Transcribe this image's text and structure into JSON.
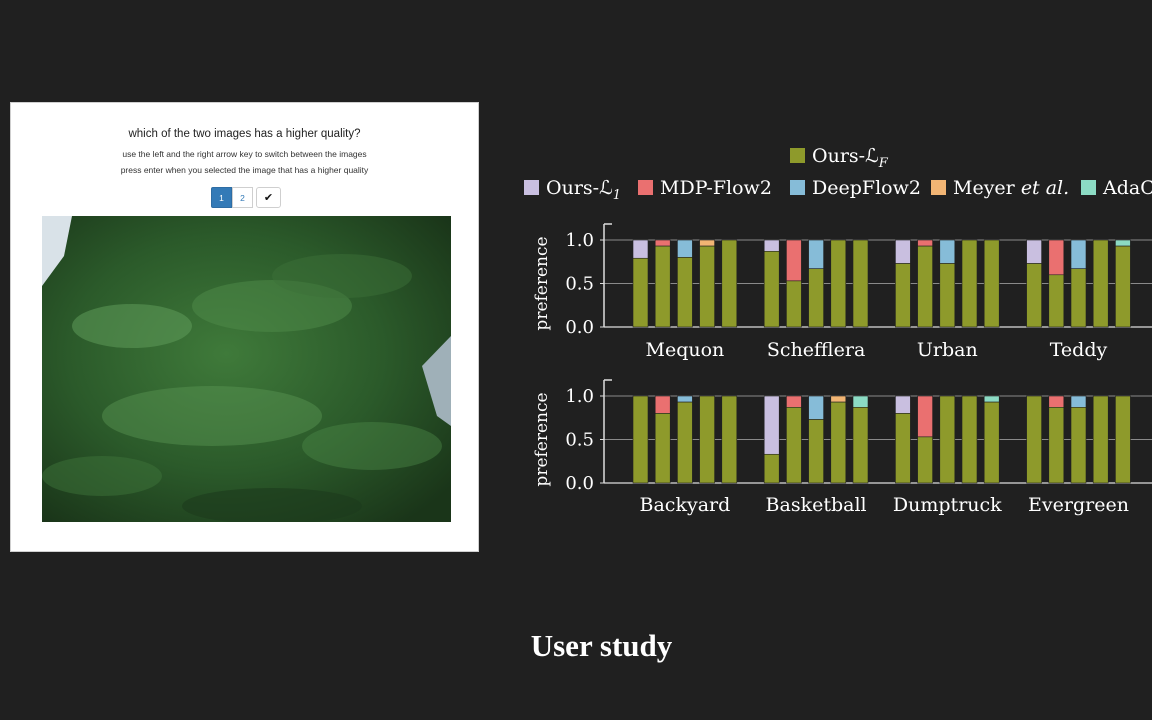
{
  "survey": {
    "question": "which of the two images has a higher quality?",
    "instruction_1": "use the left and the right arrow key to switch between the images",
    "instruction_2": "press enter when you selected the image that has a higher quality",
    "pages": [
      "1",
      "2"
    ],
    "confirm_glyph": "✔",
    "confirm_icon": "checkmark-icon",
    "active_page": "1",
    "accent": "#337ab7"
  },
  "caption": "User study",
  "chart_data": {
    "type": "bar",
    "stacked": true,
    "ylabel": "preference",
    "yticks": [
      "0.0",
      "0.5",
      "1.0"
    ],
    "ylim": [
      0,
      1
    ],
    "grid": true,
    "legend": {
      "placement": "top",
      "entries": [
        {
          "name": "Ours-ℒ",
          "sub": "F",
          "color": "#8e9a2b"
        },
        {
          "name": "Ours-ℒ",
          "sub": "1",
          "color": "#c9bfe0"
        },
        {
          "name": "MDP-Flow2",
          "sub": "",
          "color": "#ea7070"
        },
        {
          "name": "DeepFlow2",
          "sub": "",
          "color": "#86bcd8"
        },
        {
          "name": "Meyer ",
          "italic": "et al.",
          "color": "#f2b574"
        },
        {
          "name": "AdaC",
          "sub": "",
          "color": "#8cdbc4"
        }
      ]
    },
    "base_color": "#8e9a2b",
    "rows": [
      {
        "groups": [
          {
            "name": "Mequon",
            "bars": [
              {
                "ours": 0.79,
                "top": "#c9bfe0"
              },
              {
                "ours": 0.93,
                "top": "#ea7070"
              },
              {
                "ours": 0.8,
                "top": "#86bcd8"
              },
              {
                "ours": 0.93,
                "top": "#f2b574"
              },
              {
                "ours": 1.0,
                "top": "#8cdbc4"
              }
            ]
          },
          {
            "name": "Schefflera",
            "bars": [
              {
                "ours": 0.87,
                "top": "#c9bfe0"
              },
              {
                "ours": 0.53,
                "top": "#ea7070"
              },
              {
                "ours": 0.67,
                "top": "#86bcd8"
              },
              {
                "ours": 1.0,
                "top": "#f2b574"
              },
              {
                "ours": 1.0,
                "top": "#8cdbc4"
              }
            ]
          },
          {
            "name": "Urban",
            "bars": [
              {
                "ours": 0.73,
                "top": "#c9bfe0"
              },
              {
                "ours": 0.93,
                "top": "#ea7070"
              },
              {
                "ours": 0.73,
                "top": "#86bcd8"
              },
              {
                "ours": 1.0,
                "top": "#f2b574"
              },
              {
                "ours": 1.0,
                "top": "#8cdbc4"
              }
            ]
          },
          {
            "name": "Teddy",
            "bars": [
              {
                "ours": 0.73,
                "top": "#c9bfe0"
              },
              {
                "ours": 0.6,
                "top": "#ea7070"
              },
              {
                "ours": 0.67,
                "top": "#86bcd8"
              },
              {
                "ours": 1.0,
                "top": "#f2b574"
              },
              {
                "ours": 0.93,
                "top": "#8cdbc4"
              }
            ]
          }
        ]
      },
      {
        "groups": [
          {
            "name": "Backyard",
            "bars": [
              {
                "ours": 1.0,
                "top": "#c9bfe0"
              },
              {
                "ours": 0.8,
                "top": "#ea7070"
              },
              {
                "ours": 0.93,
                "top": "#86bcd8"
              },
              {
                "ours": 1.0,
                "top": "#f2b574"
              },
              {
                "ours": 1.0,
                "top": "#8cdbc4"
              }
            ]
          },
          {
            "name": "Basketball",
            "bars": [
              {
                "ours": 0.33,
                "top": "#c9bfe0"
              },
              {
                "ours": 0.87,
                "top": "#ea7070"
              },
              {
                "ours": 0.73,
                "top": "#86bcd8"
              },
              {
                "ours": 0.93,
                "top": "#f2b574"
              },
              {
                "ours": 0.87,
                "top": "#8cdbc4"
              }
            ]
          },
          {
            "name": "Dumptruck",
            "bars": [
              {
                "ours": 0.8,
                "top": "#c9bfe0"
              },
              {
                "ours": 0.53,
                "top": "#ea7070"
              },
              {
                "ours": 1.0,
                "top": "#86bcd8"
              },
              {
                "ours": 1.0,
                "top": "#f2b574"
              },
              {
                "ours": 0.93,
                "top": "#8cdbc4"
              }
            ]
          },
          {
            "name": "Evergreen",
            "bars": [
              {
                "ours": 1.0,
                "top": "#c9bfe0"
              },
              {
                "ours": 0.87,
                "top": "#ea7070"
              },
              {
                "ours": 0.87,
                "top": "#86bcd8"
              },
              {
                "ours": 1.0,
                "top": "#f2b574"
              },
              {
                "ours": 1.0,
                "top": "#8cdbc4"
              }
            ]
          }
        ]
      }
    ]
  }
}
